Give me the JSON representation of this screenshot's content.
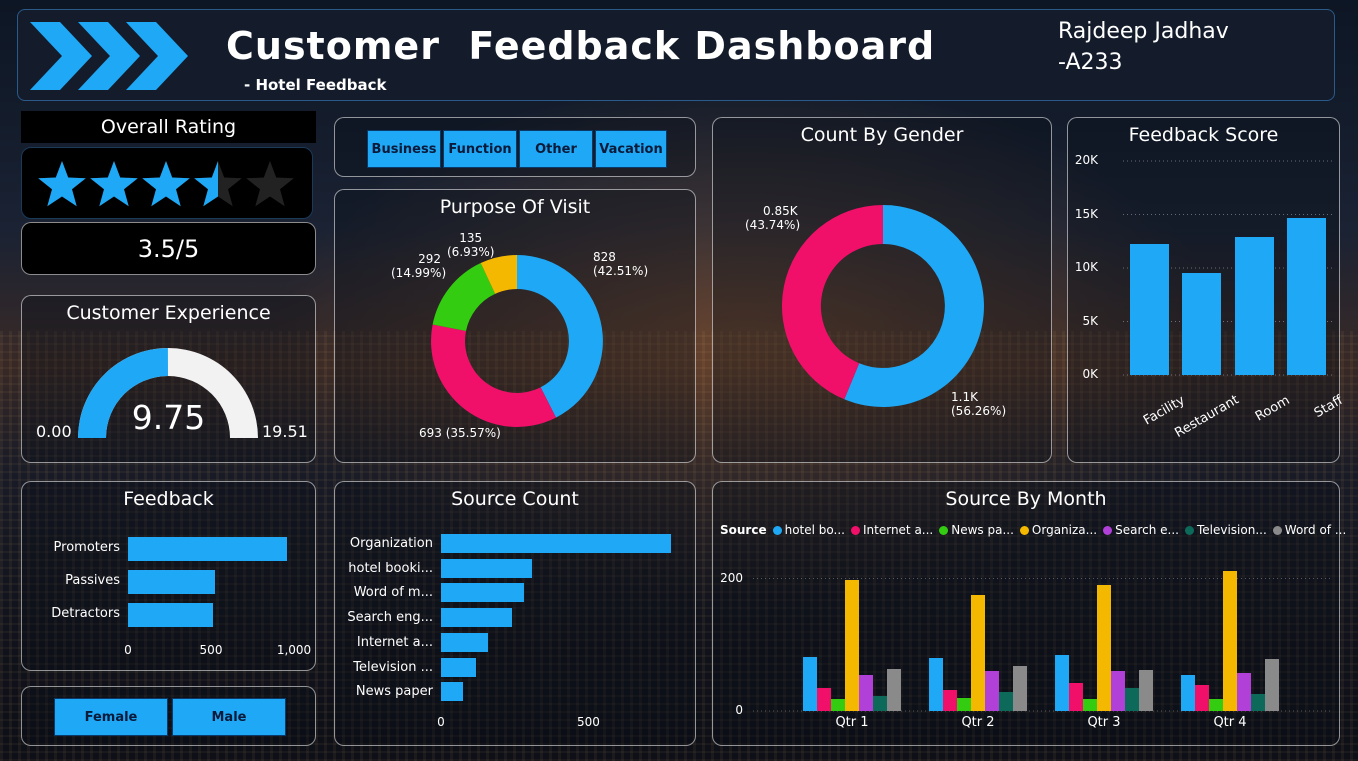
{
  "header": {
    "title": "Customer  Feedback Dashboard",
    "subtitle": "- Hotel Feedback",
    "author_line1": "Rajdeep Jadhav",
    "author_line2": "-A233"
  },
  "overall_rating": {
    "title": "Overall Rating",
    "value_text": "3.5/5",
    "stars": 3.5,
    "max_stars": 5
  },
  "customer_experience": {
    "title": "Customer Experience",
    "value": "9.75",
    "min": "0.00",
    "max": "19.51"
  },
  "purpose_filter": {
    "buttons": [
      "Business",
      "Function",
      "Other",
      "Vacation"
    ]
  },
  "gender_filter": {
    "buttons": [
      "Female",
      "Male"
    ]
  },
  "colors": {
    "blue": "#1fa8f5",
    "pink": "#f0106a",
    "green": "#33cc11",
    "yellow": "#f5b800",
    "purple": "#b040d8",
    "teal": "#0d6a5a",
    "gray": "#8a8a8a"
  },
  "purpose_of_visit": {
    "title": "Purpose Of Visit",
    "slices": [
      {
        "value": 828,
        "label": "828",
        "pct": "(42.51%)",
        "color": "#1fa8f5"
      },
      {
        "value": 693,
        "label": "693 (35.57%)",
        "pct": "",
        "color": "#f0106a"
      },
      {
        "value": 292,
        "label": "292",
        "pct": "(14.99%)",
        "color": "#33cc11"
      },
      {
        "value": 135,
        "label": "135",
        "pct": "(6.93%)",
        "color": "#f5b800"
      }
    ]
  },
  "count_by_gender": {
    "title": "Count By Gender",
    "slices": [
      {
        "value": 56.26,
        "label": "1.1K",
        "pct": "(56.26%)",
        "color": "#1fa8f5"
      },
      {
        "value": 43.74,
        "label": "0.85K",
        "pct": "(43.74%)",
        "color": "#f0106a"
      }
    ]
  },
  "feedback_score": {
    "title": "Feedback Score",
    "categories": [
      "Facility",
      "Restaurant",
      "Room",
      "Staff"
    ],
    "values": [
      12200,
      9500,
      12900,
      14700
    ],
    "yticks": [
      "0K",
      "5K",
      "10K",
      "15K",
      "20K"
    ],
    "ymax": 20000
  },
  "feedback": {
    "title": "Feedback",
    "categories": [
      "Promoters",
      "Passives",
      "Detractors"
    ],
    "values": [
      955,
      525,
      510
    ],
    "xticks": [
      "0",
      "500",
      "1,000"
    ],
    "xmax": 1000
  },
  "source_count": {
    "title": "Source Count",
    "categories": [
      "Organization",
      "hotel booki...",
      "Word of m...",
      "Search eng...",
      "Internet a...",
      "Television ...",
      "News paper"
    ],
    "values": [
      780,
      310,
      280,
      240,
      160,
      120,
      75
    ],
    "xticks": [
      "0",
      "500"
    ],
    "xmax": 780
  },
  "source_by_month": {
    "title": "Source By Month",
    "legend_label": "Source",
    "series_names": [
      "hotel bo...",
      "Internet a...",
      "News pa...",
      "Organiza...",
      "Search e...",
      "Television...",
      "Word of ..."
    ],
    "series_colors": [
      "#1fa8f5",
      "#f0106a",
      "#33cc11",
      "#f5b800",
      "#b040d8",
      "#0d6a5a",
      "#8a8a8a"
    ],
    "quarters": [
      "Qtr 1",
      "Qtr 2",
      "Qtr 3",
      "Qtr 4"
    ],
    "values": [
      [
        82,
        35,
        18,
        198,
        55,
        22,
        63
      ],
      [
        80,
        32,
        20,
        175,
        60,
        28,
        68
      ],
      [
        85,
        42,
        18,
        190,
        60,
        35,
        62
      ],
      [
        55,
        40,
        18,
        212,
        58,
        25,
        78
      ]
    ],
    "yticks": [
      "0",
      "200"
    ],
    "ymax": 240
  }
}
